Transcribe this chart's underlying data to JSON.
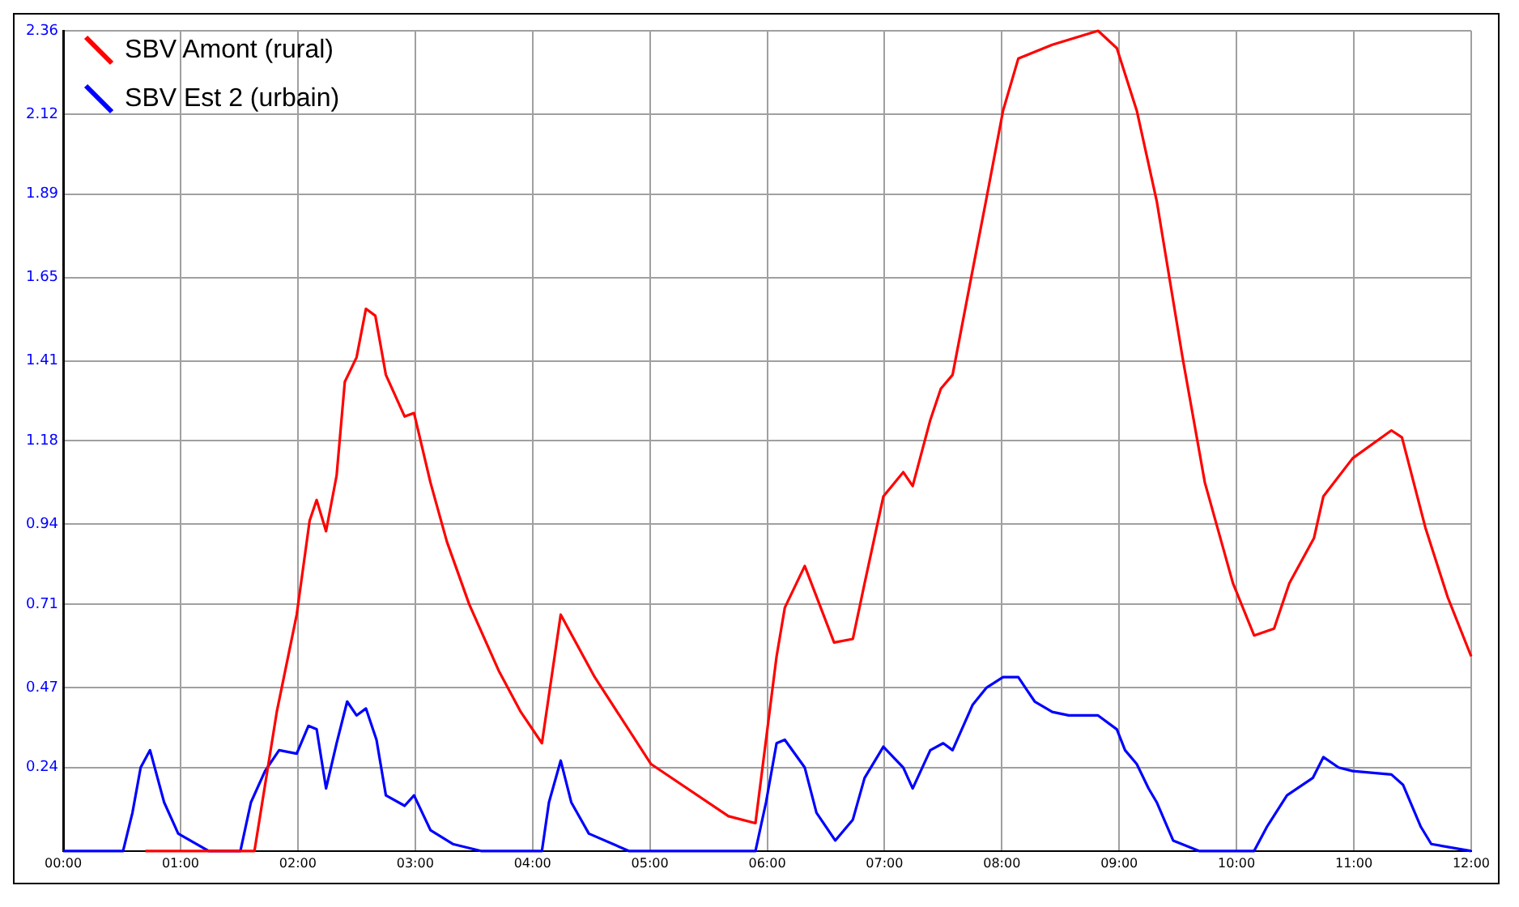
{
  "chart_data": {
    "type": "line",
    "xlim": [
      0,
      12
    ],
    "xticks": [
      {
        "value": 0,
        "label": "00:00"
      },
      {
        "value": 1,
        "label": "01:00"
      },
      {
        "value": 2,
        "label": "02:00"
      },
      {
        "value": 3,
        "label": "03:00"
      },
      {
        "value": 4,
        "label": "04:00"
      },
      {
        "value": 5,
        "label": "05:00"
      },
      {
        "value": 6,
        "label": "06:00"
      },
      {
        "value": 7,
        "label": "07:00"
      },
      {
        "value": 8,
        "label": "08:00"
      },
      {
        "value": 9,
        "label": "09:00"
      },
      {
        "value": 10,
        "label": "10:00"
      },
      {
        "value": 11,
        "label": "11:00"
      },
      {
        "value": 12,
        "label": "12:00"
      }
    ],
    "ylim": [
      0,
      2.36
    ],
    "yticks": [
      0.24,
      0.47,
      0.71,
      0.94,
      1.18,
      1.41,
      1.65,
      1.89,
      2.12,
      2.36
    ],
    "grid": true,
    "legend": "top left",
    "marker": "none",
    "line_style": "solid",
    "series": [
      {
        "name": "SBV Amont (rural)",
        "color": "#ff0000",
        "x": [
          0.7,
          1.63,
          1.82,
          1.99,
          2.1,
          2.16,
          2.24,
          2.33,
          2.4,
          2.5,
          2.58,
          2.66,
          2.75,
          2.91,
          2.99,
          3.13,
          3.27,
          3.46,
          3.71,
          3.9,
          4.08,
          4.24,
          4.53,
          5.01,
          5.67,
          5.9,
          6.08,
          6.15,
          6.32,
          6.57,
          6.73,
          6.83,
          6.99,
          7.16,
          7.24,
          7.39,
          7.48,
          7.58,
          7.75,
          7.87,
          8.01,
          8.14,
          8.43,
          8.82,
          8.98,
          9.15,
          9.32,
          9.54,
          9.73,
          9.97,
          10.15,
          10.32,
          10.45,
          10.66,
          10.74,
          10.99,
          11.32,
          11.41,
          11.61,
          11.8,
          12
        ],
        "values": [
          0,
          0,
          0.4,
          0.68,
          0.95,
          1.01,
          0.92,
          1.08,
          1.35,
          1.42,
          1.56,
          1.54,
          1.37,
          1.25,
          1.26,
          1.06,
          0.89,
          0.71,
          0.52,
          0.4,
          0.31,
          0.68,
          0.5,
          0.25,
          0.1,
          0.08,
          0.56,
          0.7,
          0.82,
          0.6,
          0.61,
          0.77,
          1.02,
          1.09,
          1.05,
          1.24,
          1.33,
          1.37,
          1.67,
          1.88,
          2.13,
          2.28,
          2.32,
          2.36,
          2.31,
          2.13,
          1.87,
          1.42,
          1.06,
          0.77,
          0.62,
          0.64,
          0.77,
          0.9,
          1.02,
          1.13,
          1.21,
          1.19,
          0.93,
          0.73,
          0.56
        ]
      },
      {
        "name": "SBV Est 2 (urbain)",
        "color": "#0000ff",
        "x": [
          0,
          0.51,
          0.59,
          0.66,
          0.74,
          0.86,
          0.98,
          1.24,
          1.51,
          1.6,
          1.72,
          1.84,
          1.99,
          2.09,
          2.16,
          2.24,
          2.33,
          2.42,
          2.5,
          2.58,
          2.67,
          2.75,
          2.91,
          2.99,
          3.13,
          3.32,
          3.56,
          4.08,
          4.14,
          4.24,
          4.33,
          4.48,
          4.82,
          5.9,
          5.99,
          6.08,
          6.15,
          6.32,
          6.42,
          6.58,
          6.73,
          6.83,
          6.99,
          7.16,
          7.24,
          7.39,
          7.5,
          7.58,
          7.75,
          7.87,
          8.01,
          8.14,
          8.28,
          8.43,
          8.57,
          8.82,
          8.98,
          9.05,
          9.15,
          9.25,
          9.32,
          9.46,
          9.68,
          10.15,
          10.26,
          10.43,
          10.65,
          10.74,
          10.87,
          10.99,
          11.32,
          11.42,
          11.57,
          11.66,
          12
        ],
        "values": [
          0,
          0,
          0.11,
          0.24,
          0.29,
          0.14,
          0.05,
          0,
          0,
          0.14,
          0.23,
          0.29,
          0.28,
          0.36,
          0.35,
          0.18,
          0.31,
          0.43,
          0.39,
          0.41,
          0.32,
          0.16,
          0.13,
          0.16,
          0.06,
          0.02,
          0,
          0,
          0.14,
          0.26,
          0.14,
          0.05,
          0,
          0,
          0.14,
          0.31,
          0.32,
          0.24,
          0.11,
          0.03,
          0.09,
          0.21,
          0.3,
          0.24,
          0.18,
          0.29,
          0.31,
          0.29,
          0.42,
          0.47,
          0.5,
          0.5,
          0.43,
          0.4,
          0.39,
          0.39,
          0.35,
          0.29,
          0.25,
          0.18,
          0.14,
          0.03,
          0,
          0,
          0.07,
          0.16,
          0.21,
          0.27,
          0.24,
          0.23,
          0.22,
          0.19,
          0.07,
          0.02,
          0
        ]
      }
    ]
  }
}
